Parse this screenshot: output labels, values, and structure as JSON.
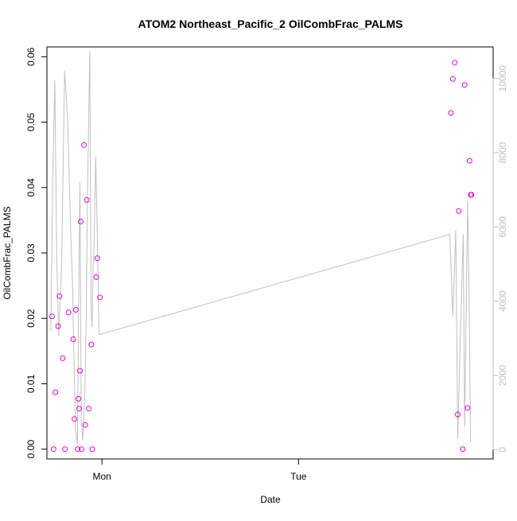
{
  "chart_data": {
    "type": "scatter",
    "title": "ATOM2 Northeast_Pacific_2 OilCombFrac_PALMS",
    "xlabel": "Date",
    "ylabel": "OilCombFrac_PALMS",
    "x_ticks": [
      {
        "label": "Mon",
        "value": 0
      },
      {
        "label": "Tue",
        "value": 1
      }
    ],
    "xlim": [
      -0.28,
      1.99
    ],
    "ylim": [
      -0.0015,
      0.0615
    ],
    "y_ticks": [
      0.0,
      0.01,
      0.02,
      0.03,
      0.04,
      0.05,
      0.06
    ],
    "y2lim": [
      -250,
      10850
    ],
    "y2_ticks": [
      0,
      2000,
      4000,
      6000,
      8000,
      10000
    ],
    "colors": {
      "points": "#e600e6",
      "line": "#c0c0c0",
      "axis": "#000000",
      "y2_axis": "#bfbfbf"
    },
    "series": [
      {
        "marker": "open-circle",
        "axis": "left",
        "points": [
          [
            -0.254,
            0.0203
          ],
          [
            -0.246,
            0.0
          ],
          [
            -0.237,
            0.0087
          ],
          [
            -0.223,
            0.0188
          ],
          [
            -0.216,
            0.0234
          ],
          [
            -0.2,
            0.0139
          ],
          [
            -0.188,
            0.0
          ],
          [
            -0.17,
            0.0209
          ],
          [
            -0.146,
            0.0168
          ],
          [
            -0.14,
            0.0046
          ],
          [
            -0.133,
            0.0213
          ],
          [
            -0.124,
            0.0
          ],
          [
            -0.12,
            0.0077
          ],
          [
            -0.116,
            0.0062
          ],
          [
            -0.112,
            0.012
          ],
          [
            -0.108,
            0.0348
          ],
          [
            -0.104,
            0.0
          ],
          [
            -0.092,
            0.0465
          ],
          [
            -0.085,
            0.0037
          ],
          [
            -0.077,
            0.0381
          ],
          [
            -0.068,
            0.0062
          ],
          [
            -0.054,
            0.016
          ],
          [
            -0.049,
            0.0
          ],
          [
            -0.029,
            0.0263
          ],
          [
            -0.024,
            0.0292
          ],
          [
            -0.01,
            0.0232
          ],
          [
            1.775,
            0.0514
          ],
          [
            1.785,
            0.0566
          ],
          [
            1.795,
            0.0591
          ],
          [
            1.81,
            0.0053
          ],
          [
            1.815,
            0.0364
          ],
          [
            1.836,
            0.0
          ],
          [
            1.845,
            0.0557
          ],
          [
            1.86,
            0.0063
          ],
          [
            1.87,
            0.0441
          ],
          [
            1.876,
            0.0389
          ],
          [
            1.88,
            0.0389
          ]
        ]
      },
      {
        "axis": "right",
        "points": [
          [
            -0.26,
            3200
          ],
          [
            -0.25,
            7400
          ],
          [
            -0.24,
            9950
          ],
          [
            -0.23,
            5100
          ],
          [
            -0.22,
            3050
          ],
          [
            -0.205,
            5000
          ],
          [
            -0.19,
            10200
          ],
          [
            -0.175,
            9000
          ],
          [
            -0.16,
            6000
          ],
          [
            -0.15,
            4500
          ],
          [
            -0.135,
            600
          ],
          [
            -0.125,
            150
          ],
          [
            -0.118,
            4200
          ],
          [
            -0.112,
            7200
          ],
          [
            -0.105,
            800
          ],
          [
            -0.098,
            250
          ],
          [
            -0.088,
            1400
          ],
          [
            -0.08,
            3500
          ],
          [
            -0.074,
            6800
          ],
          [
            -0.068,
            8800
          ],
          [
            -0.062,
            10750
          ],
          [
            -0.055,
            3700
          ],
          [
            -0.05,
            3300
          ],
          [
            -0.045,
            4900
          ],
          [
            -0.04,
            5500
          ],
          [
            -0.032,
            7900
          ],
          [
            -0.025,
            6200
          ],
          [
            -0.015,
            3100
          ],
          [
            1.77,
            5800
          ],
          [
            1.785,
            3600
          ],
          [
            1.8,
            5900
          ],
          [
            1.81,
            300
          ],
          [
            1.822,
            2800
          ],
          [
            1.838,
            5800
          ],
          [
            1.845,
            600
          ],
          [
            1.86,
            6700
          ],
          [
            1.868,
            4100
          ],
          [
            1.875,
            200
          ]
        ]
      }
    ]
  }
}
